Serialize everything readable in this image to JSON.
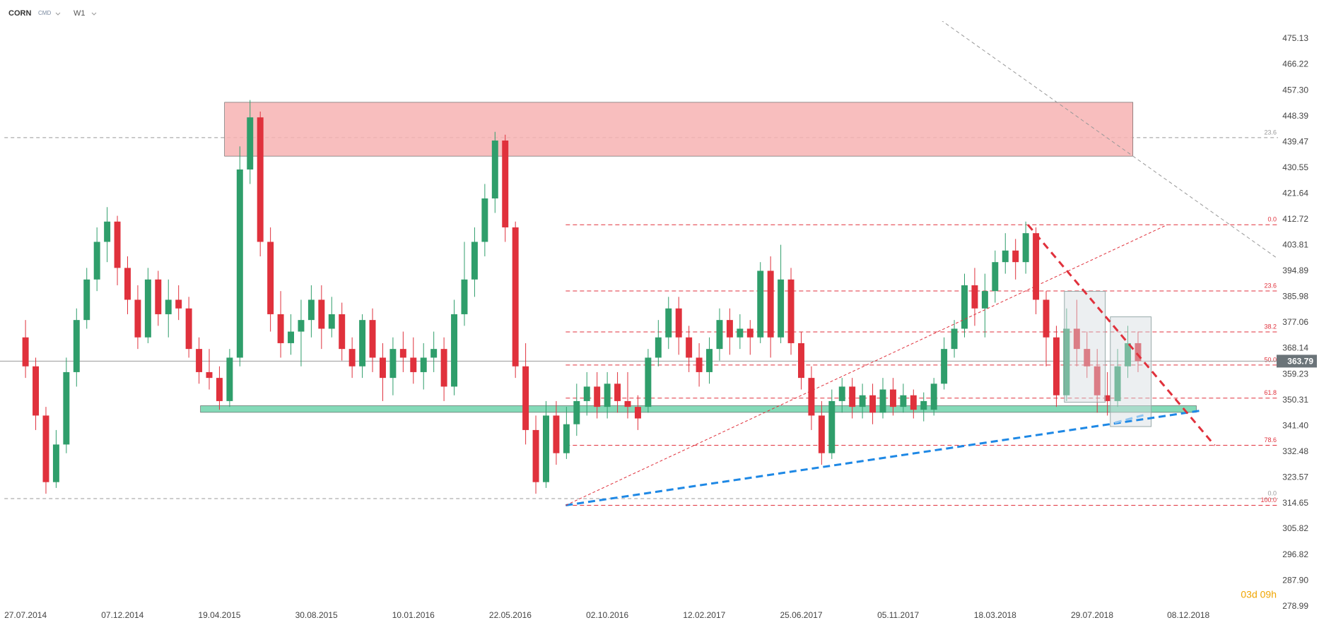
{
  "chart_data": {
    "type": "candlestick",
    "symbol": "CORN",
    "market": "CMD",
    "interval": "W1",
    "timer": "03d 09h",
    "x": [
      "27.07.2014",
      "10.08.2014",
      "24.08.2014",
      "07.09.2014",
      "21.09.2014",
      "05.10.2014",
      "19.10.2014",
      "02.11.2014",
      "16.11.2014",
      "30.11.2014",
      "14.12.2014",
      "28.12.2014",
      "11.01.2015",
      "25.01.2015",
      "08.02.2015",
      "22.02.2015",
      "08.03.2015",
      "22.03.2015",
      "05.04.2015",
      "19.04.2015",
      "03.05.2015",
      "17.05.2015",
      "31.05.2015",
      "14.06.2015",
      "28.06.2015",
      "12.07.2015",
      "26.07.2015",
      "09.08.2015",
      "23.08.2015",
      "06.09.2015",
      "20.09.2015",
      "04.10.2015",
      "18.10.2015",
      "01.11.2015",
      "15.11.2015",
      "29.11.2015",
      "13.12.2015",
      "27.12.2015",
      "10.01.2016",
      "24.01.2016",
      "07.02.2016",
      "21.02.2016",
      "06.03.2016",
      "20.03.2016",
      "03.04.2016",
      "17.04.2016",
      "01.05.2016",
      "15.05.2016",
      "29.05.2016",
      "12.06.2016",
      "26.06.2016",
      "10.07.2016",
      "24.07.2016",
      "07.08.2016",
      "21.08.2016",
      "04.09.2016",
      "18.09.2016",
      "02.10.2016",
      "16.10.2016",
      "30.10.2016",
      "13.11.2016",
      "27.11.2016",
      "11.12.2016",
      "25.12.2016",
      "08.01.2017",
      "22.01.2017",
      "05.02.2017",
      "19.02.2017",
      "05.03.2017",
      "19.03.2017",
      "02.04.2017",
      "16.04.2017",
      "30.04.2017",
      "14.05.2017",
      "28.05.2017",
      "11.06.2017",
      "25.06.2017",
      "09.07.2017",
      "23.07.2017",
      "06.08.2017",
      "20.08.2017",
      "03.09.2017",
      "17.09.2017",
      "01.10.2017",
      "15.10.2017",
      "29.10.2017",
      "12.11.2017",
      "26.11.2017",
      "10.12.2017",
      "24.12.2017",
      "07.01.2018",
      "21.01.2018",
      "04.02.2018",
      "18.02.2018",
      "04.03.2018",
      "18.03.2018",
      "01.04.2018",
      "15.04.2018",
      "29.04.2018",
      "13.05.2018",
      "27.05.2018",
      "10.06.2018",
      "24.06.2018",
      "08.07.2018",
      "22.07.2018",
      "05.08.2018",
      "19.08.2018",
      "02.09.2018",
      "16.09.2018",
      "30.09.2018"
    ],
    "open": [
      372,
      362,
      345,
      322,
      335,
      360,
      378,
      392,
      405,
      412,
      396,
      385,
      372,
      392,
      380,
      385,
      382,
      368,
      360,
      358,
      350,
      365,
      430,
      448,
      405,
      380,
      370,
      374,
      378,
      385,
      375,
      380,
      368,
      362,
      378,
      365,
      358,
      368,
      365,
      360,
      365,
      368,
      355,
      380,
      392,
      405,
      420,
      440,
      410,
      362,
      340,
      322,
      345,
      332,
      342,
      350,
      355,
      348,
      356,
      350,
      348,
      348,
      365,
      372,
      382,
      372,
      365,
      360,
      368,
      378,
      372,
      375,
      372,
      395,
      372,
      392,
      370,
      358,
      345,
      332,
      350,
      355,
      348,
      352,
      346,
      354,
      348,
      352,
      347,
      347,
      356,
      368,
      375,
      390,
      382,
      388,
      398,
      402,
      398,
      408,
      385,
      372,
      352,
      375,
      368,
      362,
      352,
      350,
      362,
      370
    ],
    "high": [
      378,
      365,
      348,
      340,
      365,
      382,
      396,
      410,
      417,
      414,
      400,
      390,
      396,
      395,
      392,
      390,
      386,
      372,
      368,
      362,
      368,
      438,
      454,
      450,
      410,
      388,
      380,
      385,
      390,
      390,
      386,
      384,
      372,
      380,
      382,
      370,
      372,
      374,
      372,
      370,
      374,
      372,
      385,
      405,
      410,
      425,
      443,
      442,
      412,
      370,
      345,
      350,
      350,
      348,
      356,
      360,
      360,
      360,
      360,
      360,
      352,
      368,
      378,
      386,
      386,
      376,
      370,
      372,
      382,
      382,
      380,
      378,
      398,
      400,
      404,
      396,
      374,
      362,
      350,
      354,
      358,
      358,
      356,
      356,
      358,
      358,
      356,
      354,
      353,
      358,
      372,
      378,
      394,
      396,
      394,
      402,
      408,
      406,
      412,
      410,
      388,
      376,
      382,
      385,
      374,
      368,
      360,
      368,
      376,
      374
    ],
    "low": [
      358,
      340,
      318,
      320,
      332,
      355,
      375,
      388,
      398,
      390,
      380,
      368,
      370,
      376,
      372,
      378,
      365,
      356,
      354,
      347,
      348,
      362,
      425,
      400,
      374,
      365,
      366,
      362,
      372,
      368,
      372,
      364,
      358,
      358,
      360,
      350,
      352,
      360,
      356,
      354,
      360,
      350,
      352,
      376,
      386,
      400,
      415,
      405,
      358,
      335,
      318,
      320,
      328,
      330,
      338,
      345,
      344,
      344,
      346,
      344,
      340,
      346,
      362,
      368,
      366,
      360,
      355,
      356,
      364,
      366,
      368,
      366,
      370,
      365,
      370,
      366,
      354,
      340,
      328,
      330,
      346,
      344,
      344,
      342,
      344,
      345,
      346,
      344,
      343,
      345,
      354,
      365,
      372,
      376,
      372,
      384,
      394,
      392,
      394,
      380,
      362,
      348,
      350,
      362,
      358,
      346,
      345,
      348,
      358,
      360
    ],
    "close": [
      362,
      345,
      322,
      335,
      360,
      378,
      392,
      405,
      412,
      396,
      385,
      372,
      392,
      380,
      385,
      382,
      368,
      360,
      358,
      350,
      365,
      430,
      448,
      405,
      380,
      370,
      374,
      378,
      385,
      375,
      380,
      368,
      362,
      378,
      365,
      358,
      368,
      365,
      360,
      365,
      368,
      355,
      380,
      392,
      405,
      420,
      440,
      410,
      362,
      340,
      322,
      345,
      332,
      342,
      350,
      355,
      348,
      356,
      350,
      348,
      344,
      365,
      372,
      382,
      372,
      365,
      360,
      368,
      378,
      372,
      375,
      372,
      395,
      372,
      392,
      370,
      358,
      345,
      332,
      350,
      355,
      348,
      352,
      346,
      354,
      348,
      352,
      347,
      350,
      356,
      368,
      375,
      390,
      382,
      388,
      398,
      402,
      398,
      408,
      385,
      372,
      352,
      375,
      368,
      362,
      352,
      350,
      362,
      370,
      363.79
    ],
    "up_color": "#2f9e6b",
    "down_color": "#e0313c",
    "last_price": 363.79,
    "xlim": [
      "22.06.2014",
      "10.04.2019"
    ],
    "xticks": [
      "27.07.2014",
      "07.12.2014",
      "19.04.2015",
      "30.08.2015",
      "10.01.2016",
      "22.05.2016",
      "02.10.2016",
      "12.02.2017",
      "25.06.2017",
      "05.11.2017",
      "18.03.2018",
      "29.07.2018",
      "08.12.2018"
    ],
    "ylim": [
      278.99,
      475.13
    ],
    "yticks": [
      475.13,
      466.22,
      {
        "value": 457.3,
        "label": "457.30"
      },
      448.39,
      439.47,
      430.55,
      421.64,
      412.72,
      403.81,
      394.89,
      385.98,
      377.06,
      368.14,
      359.23,
      350.31,
      {
        "value": 341.4,
        "label": "341.40"
      },
      332.48,
      323.57,
      314.65,
      305.82,
      296.82,
      {
        "value": 287.9,
        "label": "287.90"
      },
      278.99
    ],
    "zones": [
      {
        "color": "#f7b3b3",
        "from": "26.04.2015",
        "to": "23.09.2018",
        "top": 453.2,
        "bottom": 434.6
      },
      {
        "color": "#6fd3ac",
        "from": "24.03.2015",
        "to": "19.12.2018",
        "top": 348.4,
        "bottom": 346.1
      }
    ],
    "boxes": [
      {
        "from": "21.06.2018",
        "to": "16.08.2018",
        "top": 387.9,
        "bottom": 349.6
      },
      {
        "from": "23.08.2018",
        "to": "18.10.2018",
        "top": 379.1,
        "bottom": 341.2
      }
    ],
    "trend_lines": [
      {
        "color": "#1e88e5",
        "width": 3,
        "dash": "10 6",
        "x": [
          "06.08.2016",
          "25.12.2018"
        ],
        "y": [
          314.0,
          346.7
        ]
      },
      {
        "color": "#90c4f0",
        "width": 3,
        "dash": "10 6",
        "x": [
          "29.08.2018",
          "13.10.2018"
        ],
        "y": [
          342.5,
          345.5
        ]
      },
      {
        "color": "#e0313c",
        "width": 3,
        "dash": "10 7",
        "x": [
          "02.05.2018",
          "13.01.2019"
        ],
        "y": [
          410.9,
          334.7
        ]
      },
      {
        "color": "#e0313c",
        "width": 1,
        "dash": "4 3",
        "x": [
          "06.08.2016",
          "09.11.2018"
        ],
        "y": [
          314.0,
          410.9
        ]
      },
      {
        "color": "#999999",
        "width": 1,
        "dash": "5 4",
        "x": [
          "19.12.2017",
          "08.04.2019"
        ],
        "y": [
          484.2,
          399.5
        ]
      }
    ],
    "level_lines": [
      {
        "label": "23.6",
        "price": 441.0,
        "from": "28.06.2014"
      },
      {
        "label": "0.0",
        "price": 316.3,
        "from": "28.06.2014"
      }
    ],
    "fib": {
      "color": "#e0313c",
      "from": "06.08.2016",
      "high": 410.9,
      "low": 314.0,
      "levels": [
        {
          "value": 0,
          "label": "0.0"
        },
        23.6,
        38.2,
        {
          "value": 50,
          "label": "50.0"
        },
        61.8,
        78.6,
        {
          "value": 100,
          "label": "100.0"
        }
      ]
    }
  }
}
